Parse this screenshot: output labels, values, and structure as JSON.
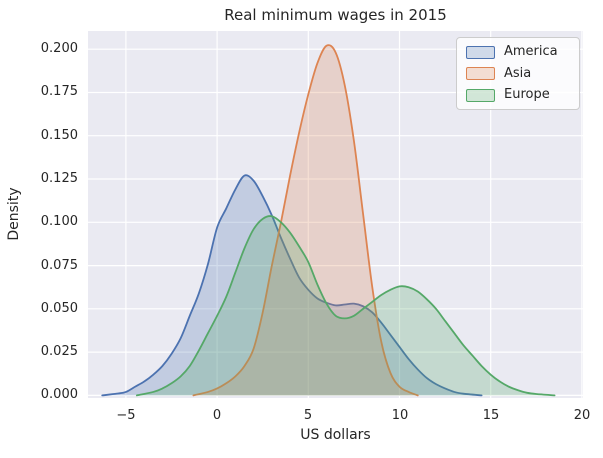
{
  "figure": {
    "background_color": "#ffffff",
    "axes_background_color": "#eaeaf2",
    "grid_color": "#ffffff",
    "text_color": "#262626"
  },
  "chart_data": {
    "type": "area",
    "variant": "kde-density",
    "title": "Real minimum wages in 2015",
    "xlabel": "US dollars",
    "ylabel": "Density",
    "xlim": [
      -7.08,
      20.06
    ],
    "ylim": [
      -0.0015,
      0.2105
    ],
    "grid": true,
    "xticks": [
      -5,
      0,
      5,
      10,
      15,
      20
    ],
    "xtick_labels": [
      "−5",
      "0",
      "5",
      "10",
      "15",
      "20"
    ],
    "yticks": [
      0.0,
      0.025,
      0.05,
      0.075,
      0.1,
      0.125,
      0.15,
      0.175,
      0.2
    ],
    "ytick_labels": [
      "0.000",
      "0.025",
      "0.050",
      "0.075",
      "0.100",
      "0.125",
      "0.150",
      "0.175",
      "0.200"
    ],
    "legend": {
      "position": "upper right",
      "entries": [
        "America",
        "Asia",
        "Europe"
      ]
    },
    "fill_opacity": 0.25,
    "line_width": 1.8,
    "series": [
      {
        "name": "America",
        "color": "#4c72b0",
        "peak": {
          "x": 1.5,
          "density": 0.127
        },
        "points": [
          [
            -6.3,
            0
          ],
          [
            -5.5,
            0.001
          ],
          [
            -5,
            0.002
          ],
          [
            -4.5,
            0.005
          ],
          [
            -4,
            0.008
          ],
          [
            -3.5,
            0.012
          ],
          [
            -3,
            0.017
          ],
          [
            -2.5,
            0.024
          ],
          [
            -2,
            0.033
          ],
          [
            -1.5,
            0.046
          ],
          [
            -1,
            0.059
          ],
          [
            -0.5,
            0.076
          ],
          [
            0,
            0.097
          ],
          [
            0.5,
            0.108
          ],
          [
            1,
            0.119
          ],
          [
            1.5,
            0.127
          ],
          [
            2,
            0.124
          ],
          [
            2.5,
            0.115
          ],
          [
            3,
            0.104
          ],
          [
            3.5,
            0.091
          ],
          [
            4,
            0.079
          ],
          [
            4.5,
            0.068
          ],
          [
            5,
            0.061
          ],
          [
            5.5,
            0.056
          ],
          [
            6,
            0.0535
          ],
          [
            6.5,
            0.052
          ],
          [
            7,
            0.0525
          ],
          [
            7.5,
            0.053
          ],
          [
            8,
            0.0515
          ],
          [
            8.5,
            0.048
          ],
          [
            9,
            0.042
          ],
          [
            9.5,
            0.035
          ],
          [
            10,
            0.028
          ],
          [
            10.5,
            0.021
          ],
          [
            11,
            0.015
          ],
          [
            11.5,
            0.01
          ],
          [
            12,
            0.0065
          ],
          [
            12.5,
            0.004
          ],
          [
            13,
            0.002
          ],
          [
            13.5,
            0.001
          ],
          [
            14.5,
            0
          ]
        ]
      },
      {
        "name": "Asia",
        "color": "#dd8452",
        "peak": {
          "x": 6.0,
          "density": 0.202
        },
        "points": [
          [
            -1.3,
            0
          ],
          [
            -0.5,
            0.002
          ],
          [
            0,
            0.004
          ],
          [
            0.5,
            0.007
          ],
          [
            1,
            0.011
          ],
          [
            1.5,
            0.017
          ],
          [
            2,
            0.027
          ],
          [
            2.5,
            0.048
          ],
          [
            3,
            0.075
          ],
          [
            3.5,
            0.1
          ],
          [
            4,
            0.127
          ],
          [
            4.5,
            0.152
          ],
          [
            5,
            0.174
          ],
          [
            5.5,
            0.192
          ],
          [
            6,
            0.202
          ],
          [
            6.5,
            0.198
          ],
          [
            7,
            0.179
          ],
          [
            7.5,
            0.147
          ],
          [
            8,
            0.105
          ],
          [
            8.5,
            0.063
          ],
          [
            9,
            0.031
          ],
          [
            9.5,
            0.013
          ],
          [
            10,
            0.005
          ],
          [
            10.5,
            0.002
          ],
          [
            11,
            0
          ]
        ]
      },
      {
        "name": "Europe",
        "color": "#55a868",
        "peak": {
          "x": 2.9,
          "density": 0.103
        },
        "points": [
          [
            -4.4,
            0
          ],
          [
            -3.5,
            0.002
          ],
          [
            -3,
            0.004
          ],
          [
            -2.5,
            0.007
          ],
          [
            -2,
            0.011
          ],
          [
            -1.5,
            0.017
          ],
          [
            -1,
            0.026
          ],
          [
            -0.5,
            0.036
          ],
          [
            0,
            0.046
          ],
          [
            0.5,
            0.057
          ],
          [
            1,
            0.071
          ],
          [
            1.5,
            0.085
          ],
          [
            2,
            0.096
          ],
          [
            2.5,
            0.102
          ],
          [
            3,
            0.1035
          ],
          [
            3.5,
            0.1
          ],
          [
            4,
            0.094
          ],
          [
            4.5,
            0.086
          ],
          [
            5,
            0.077
          ],
          [
            5.5,
            0.064
          ],
          [
            6,
            0.053
          ],
          [
            6.5,
            0.046
          ],
          [
            7,
            0.0445
          ],
          [
            7.5,
            0.046
          ],
          [
            8,
            0.05
          ],
          [
            8.5,
            0.054
          ],
          [
            9,
            0.058
          ],
          [
            9.5,
            0.061
          ],
          [
            10,
            0.063
          ],
          [
            10.5,
            0.0625
          ],
          [
            11,
            0.06
          ],
          [
            11.5,
            0.0555
          ],
          [
            12,
            0.05
          ],
          [
            12.5,
            0.043
          ],
          [
            13,
            0.036
          ],
          [
            13.5,
            0.029
          ],
          [
            14,
            0.023
          ],
          [
            14.5,
            0.017
          ],
          [
            15,
            0.012
          ],
          [
            15.5,
            0.008
          ],
          [
            16,
            0.005
          ],
          [
            16.5,
            0.003
          ],
          [
            17,
            0.0015
          ],
          [
            17.5,
            0.0008
          ],
          [
            18.5,
            0
          ]
        ]
      }
    ]
  }
}
